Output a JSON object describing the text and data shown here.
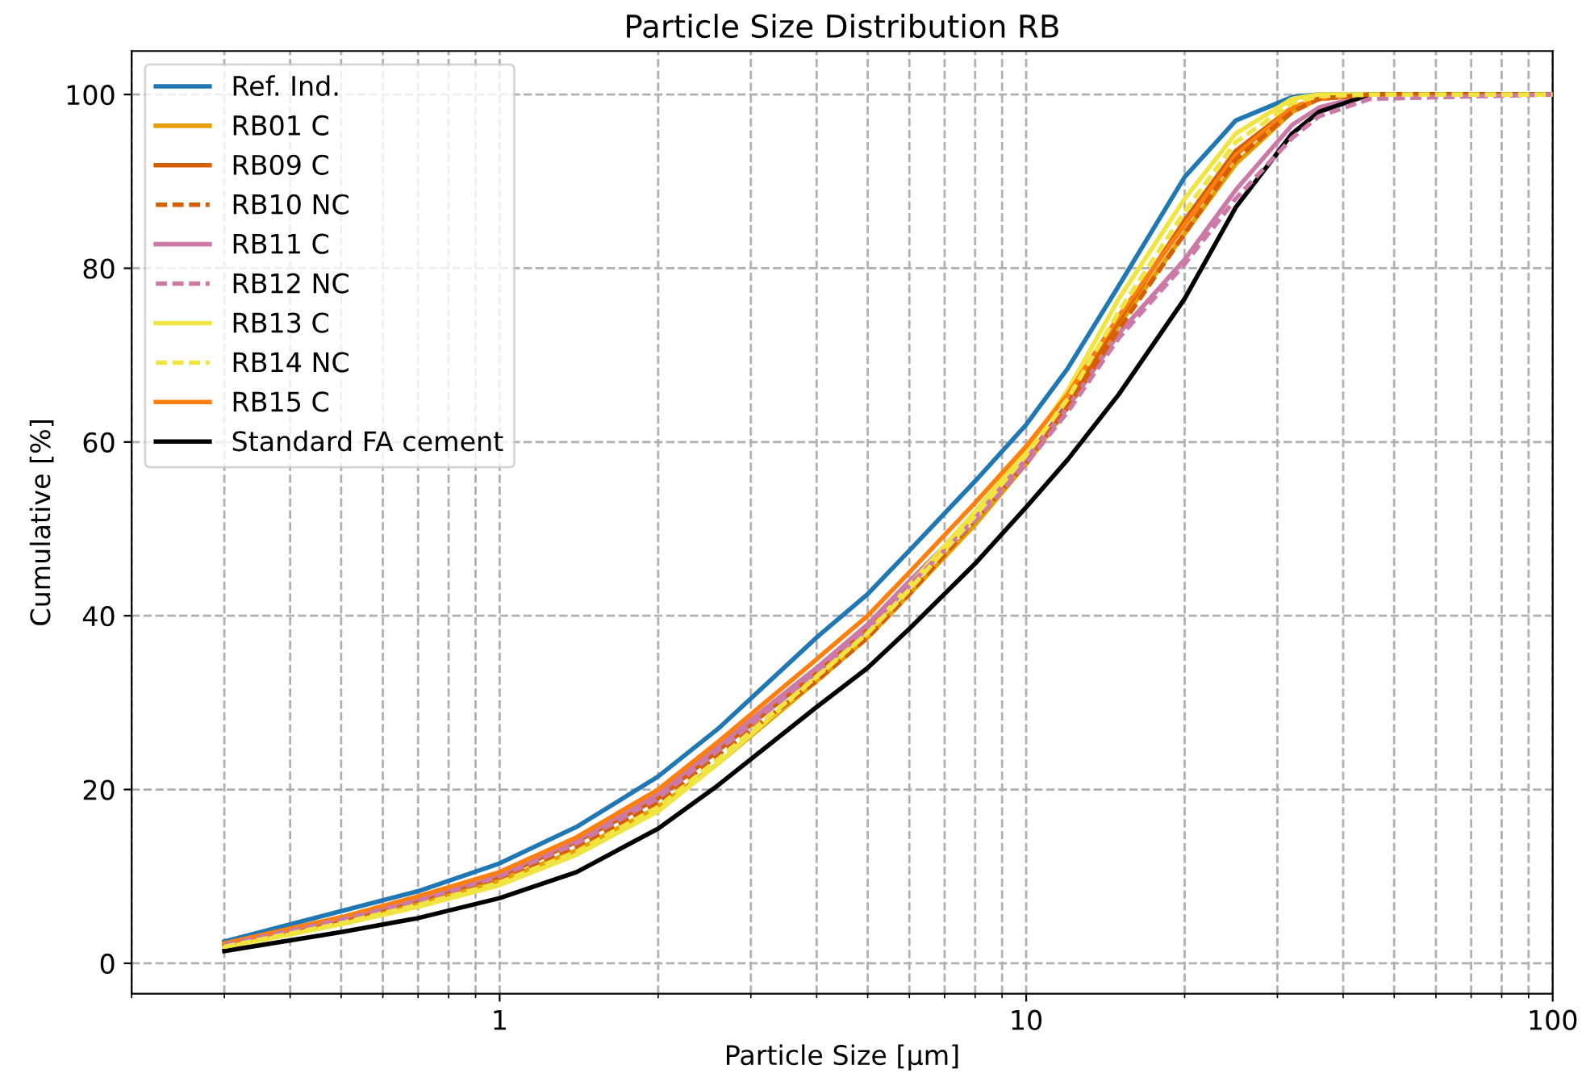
{
  "chart_data": {
    "type": "line",
    "title": "Particle Size Distribution RB",
    "xlabel": "Particle Size [µm]",
    "ylabel": "Cumulative [%]",
    "x": [
      0.3,
      0.5,
      0.7,
      1,
      1.4,
      2,
      2.6,
      4,
      5,
      6,
      8,
      10,
      12,
      15,
      20,
      25,
      32,
      36,
      45,
      100
    ],
    "series": [
      {
        "name": "Ref. Ind.",
        "color": "#1f77b4",
        "line_style": "solid",
        "values": [
          2.5,
          6,
          8.3,
          11.5,
          15.7,
          21.5,
          27,
          37.5,
          42.5,
          47.5,
          55.5,
          62,
          68.5,
          78,
          90.5,
          97,
          99.7,
          100,
          100,
          100
        ]
      },
      {
        "name": "RB01 C",
        "color": "#e69f00",
        "line_style": "solid",
        "values": [
          1.9,
          4.7,
          6.8,
          9.5,
          13,
          18,
          23,
          32.5,
          37.5,
          42.5,
          50.5,
          57.5,
          64,
          73.5,
          84,
          92,
          98,
          99.5,
          100,
          100
        ]
      },
      {
        "name": "RB09 C",
        "color": "#d55e00",
        "line_style": "solid",
        "values": [
          2.1,
          5,
          7.3,
          10,
          14,
          19,
          24.5,
          33.5,
          38.5,
          43.5,
          51.5,
          58,
          64.5,
          74,
          85.5,
          93.5,
          98.5,
          99.5,
          100,
          100
        ]
      },
      {
        "name": "RB10 NC",
        "color": "#d55e00",
        "line_style": "dashed",
        "values": [
          2,
          4.9,
          7,
          9.8,
          13.5,
          18.5,
          24,
          32.5,
          37.5,
          42.5,
          51,
          57.5,
          64,
          73,
          84,
          92.5,
          98,
          99.5,
          100,
          100
        ]
      },
      {
        "name": "RB11 C",
        "color": "#cc79a7",
        "line_style": "solid",
        "values": [
          2.2,
          5.2,
          7.5,
          10.3,
          14.2,
          19.5,
          25,
          34,
          39,
          44,
          51.5,
          58,
          64,
          72.5,
          81,
          89,
          96.5,
          98.5,
          100,
          100
        ]
      },
      {
        "name": "RB12 NC",
        "color": "#cc79a7",
        "line_style": "dashed",
        "values": [
          2.1,
          5,
          7.2,
          10,
          13.8,
          19,
          24.5,
          33.5,
          38.5,
          43.5,
          51,
          57.5,
          63.5,
          72,
          80.5,
          88,
          95,
          97.5,
          99.5,
          100
        ]
      },
      {
        "name": "RB13 C",
        "color": "#f0e442",
        "line_style": "solid",
        "values": [
          1.8,
          4.5,
          6.5,
          9,
          12.5,
          17.5,
          23,
          33,
          38,
          43.5,
          52,
          59,
          66,
          76.5,
          88,
          95.5,
          99.5,
          100,
          100,
          100
        ]
      },
      {
        "name": "RB14 NC",
        "color": "#f0e442",
        "line_style": "dashed",
        "values": [
          1.9,
          4.6,
          6.7,
          9.3,
          12.8,
          18,
          23.5,
          33,
          38,
          43,
          51.5,
          58.5,
          65,
          75,
          86.5,
          94.5,
          99,
          99.8,
          100,
          100
        ]
      },
      {
        "name": "RB15 C",
        "color": "#ff7f0e",
        "line_style": "solid",
        "values": [
          2.3,
          5.3,
          7.7,
          10.5,
          14.5,
          20,
          25.5,
          35,
          40,
          45,
          53,
          59.5,
          65.5,
          74.5,
          85,
          93,
          98.5,
          99.5,
          100,
          100
        ]
      },
      {
        "name": "Standard FA cement",
        "color": "#000000",
        "line_style": "solid",
        "values": [
          1.4,
          3.6,
          5.2,
          7.5,
          10.5,
          15.5,
          20.5,
          29.5,
          34,
          38.5,
          46,
          52.5,
          58,
          65.5,
          76.5,
          87,
          95.5,
          98,
          100,
          100
        ]
      }
    ],
    "log": "x",
    "xlim": [
      0.2,
      100
    ],
    "xticks": [
      1,
      10,
      100
    ],
    "ylim": [
      -3.5,
      105
    ],
    "yticks": [
      0,
      20,
      40,
      60,
      80,
      100
    ],
    "grid": true,
    "legend": "top left",
    "marker": "none"
  }
}
